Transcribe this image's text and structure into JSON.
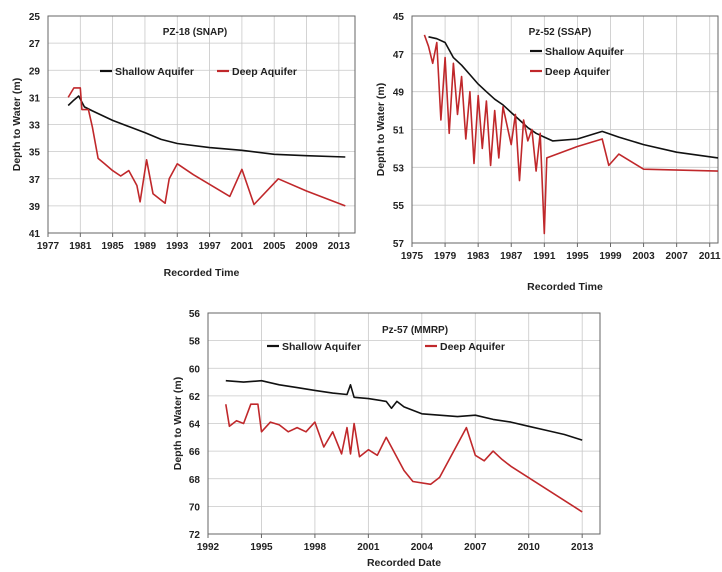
{
  "chart_data": [
    {
      "type": "line",
      "title": "PZ-18 (SNAP)",
      "xlabel": "Recorded Time",
      "ylabel": "Depth to Water (m)",
      "xlim": [
        1977,
        2015
      ],
      "ylim": [
        25,
        41
      ],
      "y_inverted": true,
      "xticks": [
        1977,
        1981,
        1985,
        1989,
        1993,
        1997,
        2001,
        2005,
        2009,
        2013
      ],
      "yticks": [
        25,
        27,
        29,
        31,
        33,
        35,
        37,
        39,
        41
      ],
      "grid": true,
      "legend_position": "top-center",
      "series": [
        {
          "name": "Shallow Aquifer",
          "color": "#111111",
          "points": [
            [
              1979.5,
              31.6
            ],
            [
              1980.2,
              31.2
            ],
            [
              1980.8,
              30.9
            ],
            [
              1981.5,
              31.7
            ],
            [
              1982.5,
              32.0
            ],
            [
              1985,
              32.7
            ],
            [
              1989,
              33.6
            ],
            [
              1991,
              34.1
            ],
            [
              1993,
              34.4
            ],
            [
              1997,
              34.7
            ],
            [
              2001,
              34.9
            ],
            [
              2005,
              35.2
            ],
            [
              2009,
              35.3
            ],
            [
              2013.8,
              35.4
            ]
          ]
        },
        {
          "name": "Deep Aquifer",
          "color": "#c0282b",
          "points": [
            [
              1979.5,
              31.0
            ],
            [
              1980.2,
              30.3
            ],
            [
              1981.0,
              30.3
            ],
            [
              1981.2,
              31.9
            ],
            [
              1982.0,
              31.9
            ],
            [
              1982.5,
              33.2
            ],
            [
              1983.2,
              35.5
            ],
            [
              1984.0,
              35.9
            ],
            [
              1985.0,
              36.4
            ],
            [
              1986.0,
              36.8
            ],
            [
              1987.0,
              36.4
            ],
            [
              1988.0,
              37.5
            ],
            [
              1988.4,
              38.7
            ],
            [
              1989.2,
              35.6
            ],
            [
              1990.0,
              38.1
            ],
            [
              1991.5,
              38.8
            ],
            [
              1992.0,
              37.0
            ],
            [
              1993.0,
              35.9
            ],
            [
              1995.0,
              36.7
            ],
            [
              1999.5,
              38.3
            ],
            [
              2001.0,
              36.3
            ],
            [
              2002.5,
              38.9
            ],
            [
              2005.5,
              37.0
            ],
            [
              2009.0,
              37.9
            ],
            [
              2013.8,
              39.0
            ]
          ]
        }
      ]
    },
    {
      "type": "line",
      "title": "Pz-52 (SSAP)",
      "xlabel": "Recorded Time",
      "ylabel": "Depth to Water (m)",
      "xlim": [
        1975,
        2012
      ],
      "ylim": [
        45,
        57
      ],
      "y_inverted": true,
      "xticks": [
        1975,
        1979,
        1983,
        1987,
        1991,
        1995,
        1999,
        2003,
        2007,
        2011
      ],
      "yticks": [
        45,
        47,
        49,
        51,
        53,
        55,
        57
      ],
      "grid": true,
      "legend_position": "top-center",
      "series": [
        {
          "name": "Shallow Aquifer",
          "color": "#111111",
          "points": [
            [
              1977.0,
              46.1
            ],
            [
              1978.0,
              46.2
            ],
            [
              1979.0,
              46.4
            ],
            [
              1980.0,
              47.2
            ],
            [
              1981.0,
              47.6
            ],
            [
              1982.0,
              48.1
            ],
            [
              1983.0,
              48.6
            ],
            [
              1984.0,
              49.0
            ],
            [
              1985.0,
              49.4
            ],
            [
              1986.0,
              49.7
            ],
            [
              1987.0,
              50.1
            ],
            [
              1988.0,
              50.5
            ],
            [
              1989.0,
              50.9
            ],
            [
              1990.0,
              51.2
            ],
            [
              1991.0,
              51.4
            ],
            [
              1992.0,
              51.6
            ],
            [
              1995.0,
              51.5
            ],
            [
              1998.0,
              51.1
            ],
            [
              2000.0,
              51.4
            ],
            [
              2003.0,
              51.8
            ],
            [
              2007.0,
              52.2
            ],
            [
              2012.0,
              52.5
            ]
          ]
        },
        {
          "name": "Deep Aquifer",
          "color": "#c0282b",
          "points": [
            [
              1976.5,
              46.0
            ],
            [
              1977.0,
              46.6
            ],
            [
              1977.5,
              47.5
            ],
            [
              1978.0,
              46.4
            ],
            [
              1978.5,
              50.5
            ],
            [
              1979.0,
              47.2
            ],
            [
              1979.5,
              51.2
            ],
            [
              1980.0,
              47.5
            ],
            [
              1980.5,
              50.2
            ],
            [
              1981.0,
              48.2
            ],
            [
              1981.5,
              51.5
            ],
            [
              1982.0,
              49.0
            ],
            [
              1982.5,
              52.8
            ],
            [
              1983.0,
              49.2
            ],
            [
              1983.5,
              52.0
            ],
            [
              1984.0,
              49.5
            ],
            [
              1984.5,
              52.9
            ],
            [
              1985.0,
              50.0
            ],
            [
              1985.5,
              52.5
            ],
            [
              1986.0,
              49.8
            ],
            [
              1987.0,
              51.8
            ],
            [
              1987.5,
              50.2
            ],
            [
              1988.0,
              53.7
            ],
            [
              1988.5,
              50.5
            ],
            [
              1989.0,
              51.6
            ],
            [
              1989.5,
              51.0
            ],
            [
              1990.0,
              53.2
            ],
            [
              1990.5,
              51.2
            ],
            [
              1991.0,
              56.5
            ],
            [
              1991.3,
              52.5
            ],
            [
              1995.0,
              51.9
            ],
            [
              1998.0,
              51.5
            ],
            [
              1998.8,
              52.9
            ],
            [
              2000.0,
              52.3
            ],
            [
              2003.0,
              53.1
            ],
            [
              2012.0,
              53.2
            ]
          ]
        }
      ]
    },
    {
      "type": "line",
      "title": "Pz-57 (MMRP)",
      "xlabel": "Recorded Date",
      "ylabel": "Depth to Water (m)",
      "xlim": [
        1992,
        2014
      ],
      "ylim": [
        56,
        72
      ],
      "y_inverted": true,
      "xticks": [
        1992,
        1995,
        1998,
        2001,
        2004,
        2007,
        2010,
        2013
      ],
      "yticks": [
        56,
        58,
        60,
        62,
        64,
        66,
        68,
        70,
        72
      ],
      "grid": true,
      "legend_position": "top-center",
      "series": [
        {
          "name": "Shallow Aquifer",
          "color": "#111111",
          "points": [
            [
              1993.0,
              60.9
            ],
            [
              1994.0,
              61.0
            ],
            [
              1995.0,
              60.9
            ],
            [
              1996.0,
              61.2
            ],
            [
              1997.0,
              61.4
            ],
            [
              1998.0,
              61.6
            ],
            [
              1999.0,
              61.8
            ],
            [
              1999.8,
              61.9
            ],
            [
              2000.0,
              61.2
            ],
            [
              2000.2,
              62.1
            ],
            [
              2001.0,
              62.2
            ],
            [
              2002.0,
              62.4
            ],
            [
              2002.3,
              62.9
            ],
            [
              2002.6,
              62.4
            ],
            [
              2003.0,
              62.8
            ],
            [
              2004.0,
              63.3
            ],
            [
              2005.0,
              63.4
            ],
            [
              2006.0,
              63.5
            ],
            [
              2007.0,
              63.4
            ],
            [
              2008.0,
              63.7
            ],
            [
              2009.0,
              63.9
            ],
            [
              2010.0,
              64.2
            ],
            [
              2011.0,
              64.5
            ],
            [
              2012.0,
              64.8
            ],
            [
              2013.0,
              65.2
            ]
          ]
        },
        {
          "name": "Deep Aquifer",
          "color": "#c0282b",
          "points": [
            [
              1993.0,
              62.6
            ],
            [
              1993.2,
              64.2
            ],
            [
              1993.6,
              63.8
            ],
            [
              1994.0,
              64.0
            ],
            [
              1994.4,
              62.6
            ],
            [
              1994.8,
              62.6
            ],
            [
              1995.0,
              64.6
            ],
            [
              1995.5,
              63.9
            ],
            [
              1996.0,
              64.1
            ],
            [
              1996.5,
              64.6
            ],
            [
              1997.0,
              64.3
            ],
            [
              1997.5,
              64.6
            ],
            [
              1998.0,
              63.9
            ],
            [
              1998.5,
              65.7
            ],
            [
              1999.0,
              64.6
            ],
            [
              1999.5,
              66.2
            ],
            [
              1999.8,
              64.3
            ],
            [
              2000.0,
              66.2
            ],
            [
              2000.2,
              64.0
            ],
            [
              2000.5,
              66.4
            ],
            [
              2001.0,
              65.9
            ],
            [
              2001.5,
              66.3
            ],
            [
              2002.0,
              65.0
            ],
            [
              2002.5,
              66.2
            ],
            [
              2003.0,
              67.4
            ],
            [
              2003.5,
              68.2
            ],
            [
              2004.5,
              68.4
            ],
            [
              2005.0,
              67.9
            ],
            [
              2006.5,
              64.3
            ],
            [
              2007.0,
              66.3
            ],
            [
              2007.5,
              66.7
            ],
            [
              2008.0,
              66.0
            ],
            [
              2008.5,
              66.6
            ],
            [
              2009.0,
              67.1
            ],
            [
              2013.0,
              70.4
            ]
          ]
        }
      ]
    }
  ]
}
